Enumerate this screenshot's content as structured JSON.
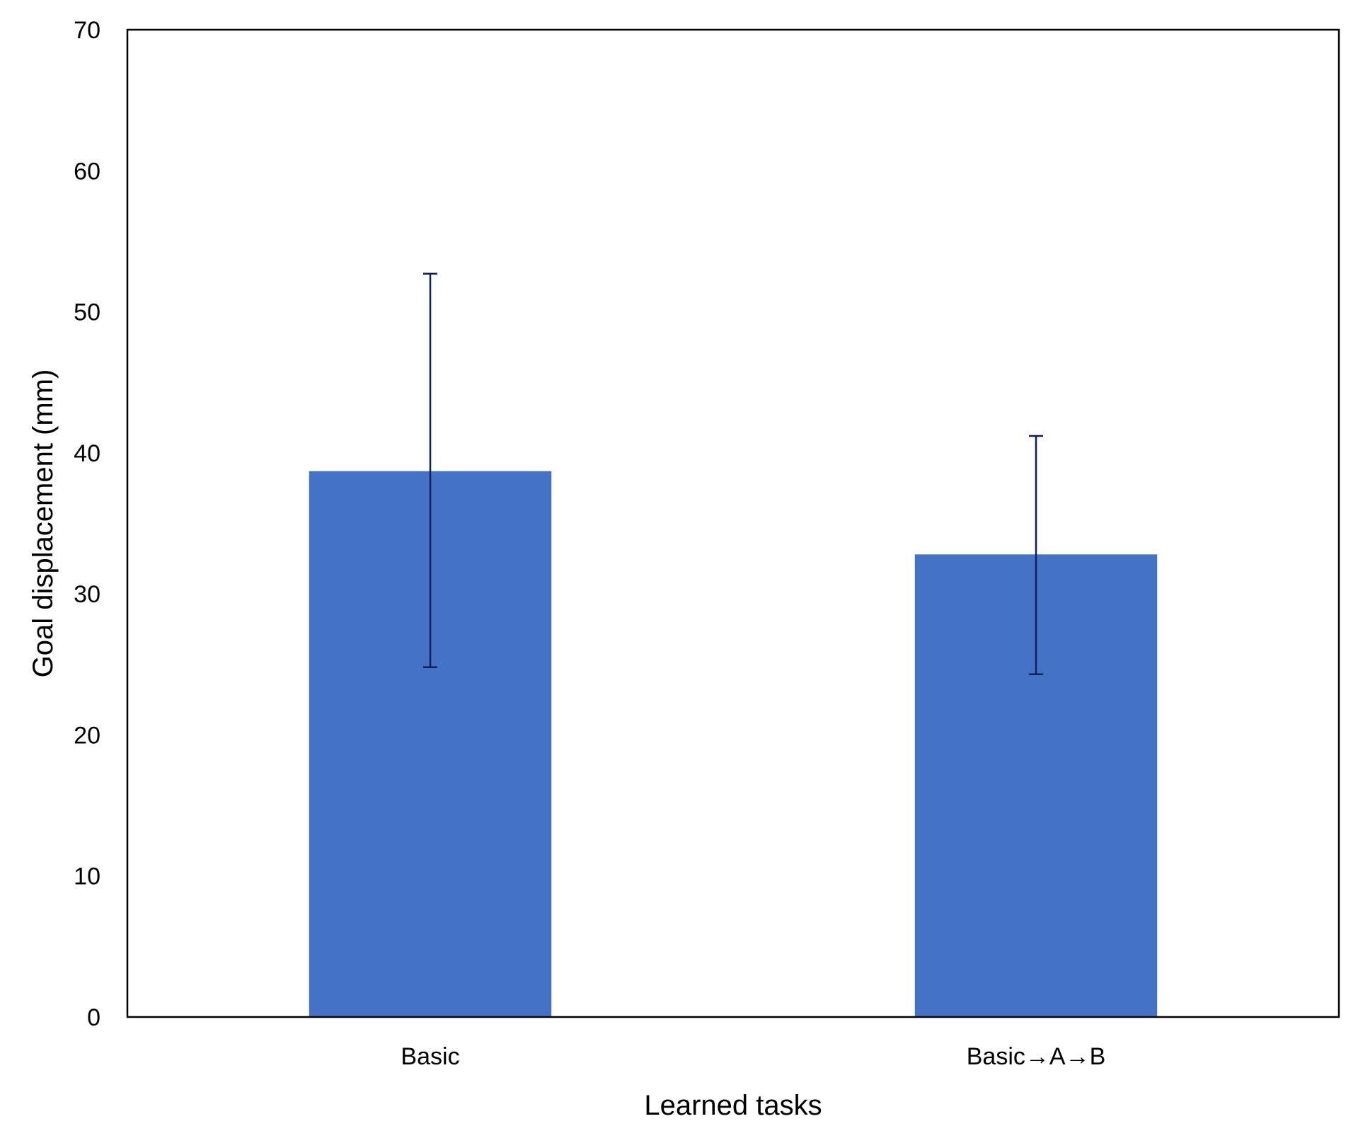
{
  "chart_data": {
    "type": "bar",
    "categories": [
      "Basic",
      "Basic→A→B"
    ],
    "values": [
      38.7,
      32.8
    ],
    "error_bars": {
      "upper": [
        52.7,
        41.2
      ],
      "lower": [
        24.8,
        24.3
      ]
    },
    "xlabel": "Learned tasks",
    "ylabel": "Goal displacement (mm)",
    "ylim": [
      0,
      70
    ],
    "yticks": [
      0,
      10,
      20,
      30,
      40,
      50,
      60,
      70
    ],
    "grid": false,
    "legend": "none",
    "colors": {
      "bar": "#4472C4",
      "error_bar": "#0D1F5C",
      "frame": "#000000"
    }
  }
}
